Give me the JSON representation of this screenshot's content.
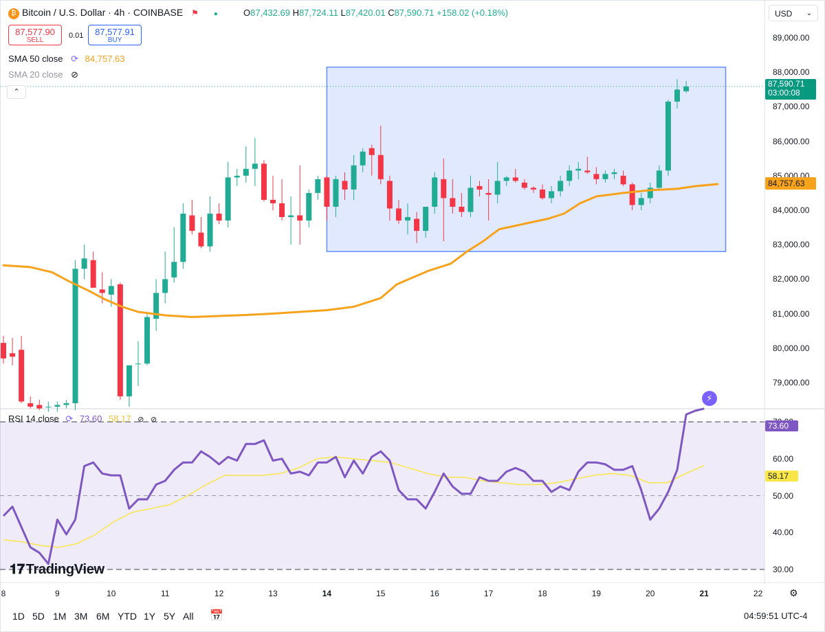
{
  "header": {
    "title": "Bitcoin / U.S. Dollar · 4h · COINBASE",
    "ohlc": {
      "o_label": "O",
      "o": "87,432.69",
      "h_label": "H",
      "h": "87,724.11",
      "l_label": "L",
      "l": "87,420.01",
      "c_label": "C",
      "c": "87,590.71",
      "change": "+158.02 (+0.18%)"
    },
    "sell_price": "87,577.90",
    "sell_label": "SELL",
    "spread": "0.01",
    "buy_price": "87,577.91",
    "buy_label": "BUY",
    "currency": "USD"
  },
  "indicators": {
    "sma50": {
      "label": "SMA 50 close",
      "value": "84,757.63"
    },
    "sma20": {
      "label": "SMA 20 close"
    },
    "rsi": {
      "label": "RSI 14 close",
      "value": "73.60",
      "ma_value": "58.17"
    }
  },
  "tags": {
    "last_price": "87,590.71",
    "countdown": "03:00:08",
    "sma50": "84,757.63",
    "rsi": "73.60",
    "rsi_ma": "58.17"
  },
  "timeframes": [
    "1D",
    "5D",
    "1M",
    "3M",
    "6M",
    "YTD",
    "1Y",
    "5Y",
    "All"
  ],
  "clock": "04:59:51 UTC-4",
  "logo_text": "TradingView",
  "colors": {
    "up": "#22ab94",
    "down": "#f23645",
    "sma": "#f7a21b",
    "rsi": "#7e57c2",
    "rsi_ma": "#f9e74a",
    "box": "#2962ff"
  },
  "chart_data": [
    {
      "type": "candlestick",
      "title": "Bitcoin / U.S. Dollar · 4h · COINBASE",
      "ylim": [
        78300,
        89500
      ],
      "y_ticks": [
        "79,000.00",
        "80,000.00",
        "81,000.00",
        "82,000.00",
        "83,000.00",
        "84,000.00",
        "85,000.00",
        "86,000.00",
        "87,000.00",
        "88,000.00",
        "89,000.00"
      ],
      "x_ticks": [
        "8",
        "9",
        "10",
        "11",
        "12",
        "13",
        "14",
        "15",
        "16",
        "17",
        "18",
        "19",
        "20",
        "21",
        "22"
      ],
      "x_bold_ticks": [
        "14",
        "21"
      ],
      "candles": [
        [
          80150,
          80350,
          79550,
          79700
        ],
        [
          79850,
          80300,
          79500,
          79750
        ],
        [
          79950,
          80350,
          78400,
          78450
        ],
        [
          78400,
          78600,
          78250,
          78300
        ],
        [
          78350,
          78500,
          78200,
          78250
        ],
        [
          78300,
          78450,
          78150,
          78300
        ],
        [
          78300,
          78450,
          78150,
          78350
        ],
        [
          78350,
          78500,
          78250,
          78400
        ],
        [
          78400,
          82550,
          78200,
          82300
        ],
        [
          82300,
          83000,
          82000,
          82600
        ],
        [
          82550,
          82800,
          81800,
          81750
        ],
        [
          81700,
          82200,
          81300,
          81600
        ],
        [
          81550,
          82000,
          81200,
          81800
        ],
        [
          81850,
          81900,
          78500,
          78600
        ],
        [
          78600,
          79500,
          78300,
          79500
        ],
        [
          79550,
          80200,
          78900,
          79550
        ],
        [
          79550,
          81000,
          79500,
          80900
        ],
        [
          80850,
          82000,
          80500,
          81600
        ],
        [
          81600,
          82800,
          81300,
          82000
        ],
        [
          82050,
          83500,
          81900,
          82500
        ],
        [
          82500,
          84200,
          82300,
          83900
        ],
        [
          83850,
          84300,
          83300,
          83400
        ],
        [
          83350,
          83800,
          82900,
          82950
        ],
        [
          82950,
          84400,
          82800,
          83900
        ],
        [
          83900,
          84200,
          83600,
          83700
        ],
        [
          83700,
          85400,
          83500,
          84950
        ],
        [
          84950,
          85200,
          84700,
          85000
        ],
        [
          85000,
          85850,
          84800,
          85200
        ],
        [
          85200,
          86100,
          84700,
          85350
        ],
        [
          85350,
          85450,
          84250,
          84300
        ],
        [
          84300,
          85000,
          84000,
          84200
        ],
        [
          84200,
          84900,
          83700,
          83800
        ],
        [
          83800,
          84400,
          83000,
          83850
        ],
        [
          83850,
          85300,
          83000,
          83700
        ],
        [
          83700,
          84600,
          83500,
          84500
        ],
        [
          84500,
          85000,
          84300,
          84900
        ],
        [
          84950,
          85000,
          83700,
          84100
        ],
        [
          84100,
          85000,
          83800,
          84900
        ],
        [
          84850,
          85100,
          84300,
          84600
        ],
        [
          84600,
          85600,
          84300,
          85300
        ],
        [
          85300,
          85800,
          85100,
          85700
        ],
        [
          85800,
          85900,
          85000,
          85600
        ],
        [
          85600,
          86450,
          84750,
          84900
        ],
        [
          84850,
          85000,
          83700,
          84050
        ],
        [
          84050,
          84300,
          83600,
          83700
        ],
        [
          83700,
          84200,
          83300,
          83800
        ],
        [
          83750,
          83950,
          83050,
          83400
        ],
        [
          83400,
          84100,
          83200,
          84100
        ],
        [
          84100,
          85100,
          83900,
          84950
        ],
        [
          84900,
          85500,
          83100,
          84350
        ],
        [
          84350,
          84900,
          83900,
          84100
        ],
        [
          84100,
          84500,
          83800,
          83950
        ],
        [
          83950,
          85000,
          83800,
          84650
        ],
        [
          84700,
          84850,
          84400,
          84600
        ],
        [
          84500,
          84900,
          83700,
          84450
        ],
        [
          84450,
          85400,
          84200,
          84850
        ],
        [
          84850,
          85000,
          84700,
          84950
        ],
        [
          84950,
          85200,
          84800,
          84850
        ],
        [
          84800,
          84900,
          84600,
          84650
        ],
        [
          84650,
          84700,
          84500,
          84600
        ],
        [
          84600,
          84750,
          84300,
          84350
        ],
        [
          84350,
          84700,
          84200,
          84550
        ],
        [
          84550,
          85000,
          84400,
          84850
        ],
        [
          84850,
          85300,
          84700,
          85150
        ],
        [
          85150,
          85400,
          84900,
          85200
        ],
        [
          85150,
          85550,
          85050,
          85100
        ],
        [
          85050,
          85250,
          84750,
          84900
        ],
        [
          84900,
          85150,
          84800,
          85050
        ],
        [
          85050,
          85200,
          84900,
          85100
        ],
        [
          85000,
          85150,
          84700,
          84750
        ],
        [
          84750,
          84800,
          84000,
          84150
        ],
        [
          84150,
          84500,
          84000,
          84350
        ],
        [
          84350,
          84800,
          84200,
          84650
        ],
        [
          84650,
          85300,
          84600,
          85150
        ],
        [
          85150,
          87200,
          85000,
          87150
        ],
        [
          87150,
          87800,
          86950,
          87500
        ],
        [
          87450,
          87750,
          87400,
          87590
        ]
      ],
      "sma50": [
        82400,
        82350,
        82200,
        81950,
        81650,
        81400,
        81200,
        81050,
        80950,
        80900,
        80930,
        80960,
        81000,
        81050,
        81100,
        81200,
        81450,
        81850,
        82050,
        82250,
        82450,
        82800,
        83100,
        83450,
        83550,
        83650,
        83750,
        83900,
        84200,
        84400,
        84500,
        84580,
        84620,
        84700,
        84757
      ],
      "sma50_x_days": [
        8.0,
        8.5,
        8.9,
        9.2,
        9.6,
        9.9,
        10.2,
        10.5,
        11.0,
        11.5,
        12.0,
        12.5,
        13.0,
        13.5,
        14.0,
        14.5,
        15.0,
        15.3,
        15.6,
        15.9,
        16.3,
        16.6,
        16.9,
        17.2,
        17.5,
        17.8,
        18.1,
        18.4,
        18.7,
        19.0,
        19.5,
        20.0,
        20.5,
        20.85,
        21.25
      ]
    },
    {
      "type": "line",
      "title": "RSI 14 close",
      "ylim": [
        27,
        73
      ],
      "y_ticks": [
        "30.00",
        "40.00",
        "50.00",
        "60.00",
        "70.00"
      ],
      "band": [
        30,
        70
      ],
      "midline": 50,
      "rsi": [
        44.5,
        47,
        41.5,
        36,
        34.5,
        31.5,
        43.5,
        39.5,
        43.5,
        58,
        59,
        56,
        55.5,
        55.5,
        46.5,
        49,
        49,
        53,
        54,
        57,
        59,
        59,
        62,
        60.5,
        58.5,
        60.5,
        59.5,
        64,
        64,
        65,
        59.5,
        60,
        56,
        56.5,
        55.5,
        59,
        59,
        60.5,
        55,
        59.5,
        56,
        60.5,
        62,
        59.5,
        51.5,
        49,
        49,
        46.5,
        51,
        56,
        52.5,
        50.5,
        50.5,
        55,
        54,
        54,
        56.5,
        57.5,
        56.5,
        54,
        54,
        51,
        52.5,
        51.5,
        56.5,
        59,
        59,
        58.5,
        57,
        57,
        58,
        51.5,
        43.5,
        46.5,
        51,
        57,
        72,
        73,
        73.6
      ],
      "rsi_ma": [
        38,
        37.5,
        36.5,
        36,
        37,
        39.5,
        43,
        45.5,
        46.5,
        47.5,
        50,
        53,
        55.5,
        55.5,
        55.5,
        56,
        57.5,
        60,
        60.5,
        60,
        59.5,
        59,
        57.5,
        56,
        55,
        55,
        54,
        53.5,
        53,
        53,
        53.5,
        54.5,
        55.5,
        56,
        55.5,
        53.5,
        53.5,
        56,
        58.17
      ]
    }
  ]
}
